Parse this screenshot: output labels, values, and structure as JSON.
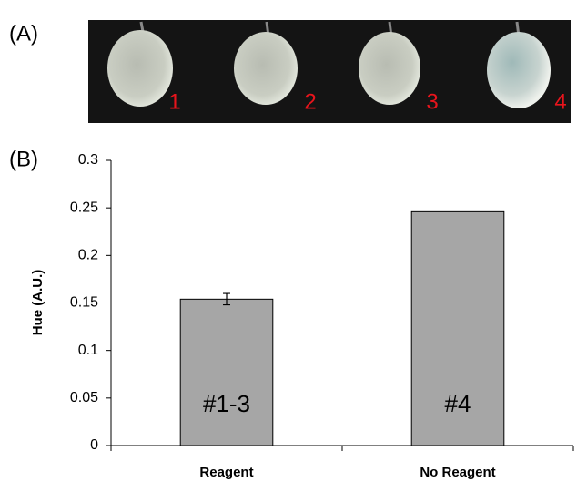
{
  "panel_labels": [
    "(A)",
    "(B)"
  ],
  "photo": {
    "labels": [
      "1",
      "2",
      "3",
      "4"
    ]
  },
  "chart_data": {
    "type": "bar",
    "y_label": "Hue (A.U.)",
    "categories": [
      "Reagent",
      "No Reagent"
    ],
    "values": [
      0.154,
      0.246
    ],
    "errors": [
      0.006,
      null
    ],
    "bar_labels": [
      "#1-3",
      "#4"
    ],
    "color": "#a6a6a6",
    "ylim": [
      0,
      0.3
    ],
    "yticks": [
      0,
      0.05,
      0.1,
      0.15,
      0.2,
      0.25,
      0.3
    ],
    "grid": false
  }
}
